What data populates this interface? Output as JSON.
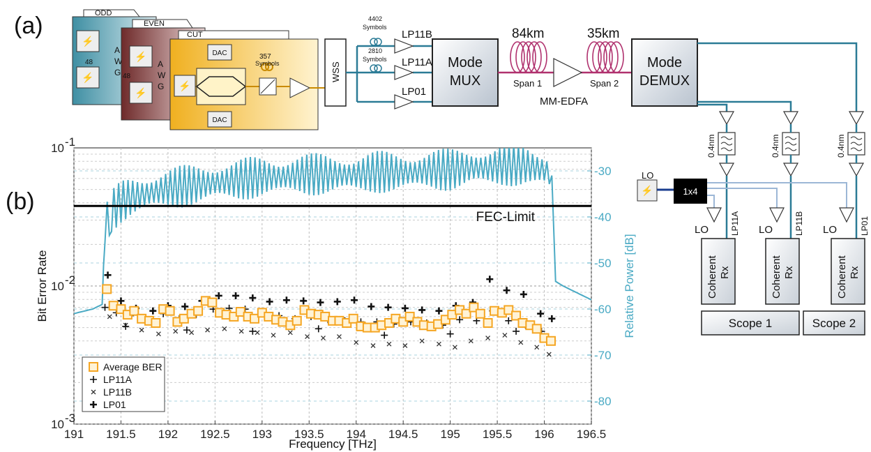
{
  "panel_labels": {
    "a": "(a)",
    "b": "(b)"
  },
  "setup": {
    "awg_odd": "ODD",
    "awg_even": "EVEN",
    "awg_cut": "CUT",
    "awg_letters": [
      "A",
      "W",
      "G"
    ],
    "awg_side": "48",
    "dac": "DAC",
    "symbols_357": "357",
    "symbols_word": "Symbols",
    "wss": "WSS",
    "delay_4402": "4402",
    "delay_2810": "2810",
    "lp11b": "LP11B",
    "lp11a": "LP11A",
    "lp01": "LP01",
    "mux_l1": "Mode",
    "mux_l2": "MUX",
    "span1_len": "84km",
    "span2_len": "35km",
    "span1": "Span 1",
    "span2": "Span 2",
    "edfa": "MM-EDFA",
    "demux_l1": "Mode",
    "demux_l2": "DEMUX",
    "filter": "0.4nm",
    "lo": "LO",
    "splitter": "1x4",
    "rx_l1": "Coherent",
    "rx_l2": "Rx",
    "rx_lo": "LO",
    "rx_labels": [
      "LP11A",
      "LP11B",
      "LP01"
    ],
    "scope1": "Scope 1",
    "scope2": "Scope 2"
  },
  "chart_data": {
    "type": "scatter",
    "xlabel": "Frequency [THz]",
    "ylabel": "Bit Error Rate",
    "ylabel_right": "Relative Power [dB]",
    "xlim": [
      191,
      196.5
    ],
    "ylim": [
      0.001,
      0.1
    ],
    "yscale": "log",
    "ylim_right": [
      -85,
      -25
    ],
    "x_ticks": [
      "191",
      "191.5",
      "192",
      "192.5",
      "193",
      "193.5",
      "194",
      "194.5",
      "195",
      "195.5",
      "196",
      "196.5"
    ],
    "y_ticks": [
      {
        "base": "10",
        "exp": "-3",
        "v": 0.001
      },
      {
        "base": "10",
        "exp": "-2",
        "v": 0.01
      },
      {
        "base": "10",
        "exp": "-1",
        "v": 0.1
      }
    ],
    "y_ticks_right": [
      "-30",
      "-40",
      "-50",
      "-60",
      "-70",
      "-80"
    ],
    "fec_limit": {
      "label": "FEC-Limit",
      "value": 0.038
    },
    "grid": true,
    "legend_position": "bottom-left",
    "legend": [
      "Average BER",
      "LP11A",
      "LP11B",
      "LP01"
    ],
    "series": [
      {
        "name": "Average BER",
        "marker": "square",
        "color": "#f5a623",
        "x": [
          191.35,
          191.42,
          191.5,
          191.57,
          191.64,
          191.72,
          191.8,
          191.87,
          191.95,
          192.02,
          192.1,
          192.17,
          192.25,
          192.32,
          192.4,
          192.47,
          192.55,
          192.62,
          192.7,
          192.77,
          192.85,
          192.92,
          193.0,
          193.07,
          193.15,
          193.22,
          193.3,
          193.37,
          193.45,
          193.52,
          193.6,
          193.67,
          193.75,
          193.82,
          193.9,
          193.97,
          194.05,
          194.12,
          194.2,
          194.27,
          194.35,
          194.42,
          194.5,
          194.57,
          194.65,
          194.72,
          194.8,
          194.87,
          194.95,
          195.02,
          195.1,
          195.17,
          195.25,
          195.32,
          195.4,
          195.47,
          195.55,
          195.62,
          195.7,
          195.77,
          195.85,
          195.92,
          196.0,
          196.07
        ],
        "y": [
          0.0095,
          0.0072,
          0.0068,
          0.0062,
          0.0066,
          0.0058,
          0.0056,
          0.0054,
          0.0068,
          0.0066,
          0.0055,
          0.0058,
          0.0063,
          0.0066,
          0.0078,
          0.0076,
          0.0064,
          0.0062,
          0.006,
          0.0065,
          0.006,
          0.0058,
          0.0064,
          0.006,
          0.0057,
          0.0055,
          0.0052,
          0.0056,
          0.0067,
          0.0063,
          0.0062,
          0.006,
          0.0056,
          0.0056,
          0.0054,
          0.0058,
          0.0051,
          0.005,
          0.005,
          0.0052,
          0.0054,
          0.0058,
          0.0055,
          0.006,
          0.0055,
          0.0052,
          0.0051,
          0.0053,
          0.0057,
          0.0062,
          0.0067,
          0.0063,
          0.007,
          0.0063,
          0.0054,
          0.0066,
          0.0064,
          0.0067,
          0.0061,
          0.0054,
          0.0052,
          0.0049,
          0.0042,
          0.004
        ]
      },
      {
        "name": "LP11A",
        "marker": "plus",
        "color": "#111111",
        "x": [
          191.33,
          191.45,
          191.6,
          191.78,
          191.95,
          192.12,
          192.3,
          192.48,
          192.65,
          192.82,
          193.0,
          193.18,
          193.35,
          193.52,
          193.7,
          193.88,
          194.05,
          194.22,
          194.4,
          194.58,
          194.75,
          194.92,
          195.1,
          195.28,
          195.45,
          195.62,
          195.8,
          195.97,
          191.55,
          192.2,
          192.9,
          193.6,
          194.3,
          195.0,
          195.7
        ],
        "y": [
          0.007,
          0.0064,
          0.0061,
          0.0056,
          0.0063,
          0.0058,
          0.0062,
          0.0068,
          0.0069,
          0.0068,
          0.0063,
          0.0061,
          0.0058,
          0.006,
          0.0057,
          0.0056,
          0.0055,
          0.0055,
          0.0053,
          0.0055,
          0.0054,
          0.0052,
          0.0057,
          0.0056,
          0.0066,
          0.0056,
          0.0052,
          0.0047,
          0.0051,
          0.0048,
          0.0047,
          0.0049,
          0.0044,
          0.0045,
          0.0047
        ]
      },
      {
        "name": "LP11B",
        "marker": "cross",
        "color": "#333333",
        "x": [
          191.38,
          191.55,
          191.72,
          191.9,
          192.08,
          192.25,
          192.42,
          192.6,
          192.78,
          192.95,
          193.12,
          193.3,
          193.48,
          193.65,
          193.82,
          194.0,
          194.18,
          194.35,
          194.52,
          194.7,
          194.88,
          195.05,
          195.22,
          195.4,
          195.58,
          195.75,
          195.92,
          196.05
        ],
        "y": [
          0.006,
          0.0052,
          0.0048,
          0.0045,
          0.0047,
          0.0046,
          0.0048,
          0.0049,
          0.0047,
          0.0046,
          0.0044,
          0.0046,
          0.0043,
          0.0042,
          0.0043,
          0.0039,
          0.0037,
          0.0038,
          0.0037,
          0.004,
          0.0038,
          0.0036,
          0.004,
          0.0042,
          0.0044,
          0.0039,
          0.0036,
          0.0032
        ]
      },
      {
        "name": "LP01",
        "marker": "thickplus",
        "color": "#111111",
        "x": [
          191.36,
          191.5,
          191.66,
          191.84,
          192.0,
          192.18,
          192.36,
          192.54,
          192.72,
          192.9,
          193.08,
          193.26,
          193.44,
          193.62,
          193.8,
          193.98,
          194.16,
          194.34,
          194.52,
          194.7,
          194.88,
          195.06,
          195.24,
          195.42,
          195.6,
          195.78,
          195.96,
          196.08
        ],
        "y": [
          0.012,
          0.0078,
          0.0069,
          0.0066,
          0.0072,
          0.0071,
          0.0078,
          0.0085,
          0.0085,
          0.0082,
          0.0077,
          0.0079,
          0.0078,
          0.0076,
          0.0077,
          0.0079,
          0.0071,
          0.007,
          0.0069,
          0.0067,
          0.0066,
          0.0072,
          0.0076,
          0.0112,
          0.0093,
          0.0087,
          0.0063,
          0.0058
        ]
      },
      {
        "name": "Relative Power",
        "axis": "right",
        "style": "line",
        "color": "#4aaac4",
        "x": [
          191.0,
          191.1,
          191.2,
          191.3,
          191.33,
          191.4,
          191.5,
          191.6,
          191.7,
          191.8,
          192.0,
          192.2,
          192.4,
          192.6,
          192.8,
          193.0,
          193.2,
          193.4,
          193.6,
          193.8,
          194.0,
          194.2,
          194.4,
          194.6,
          194.8,
          195.0,
          195.2,
          195.4,
          195.6,
          195.8,
          196.0,
          196.08,
          196.12,
          196.2,
          196.3,
          196.4,
          196.5
        ],
        "y": [
          -61,
          -60.5,
          -60,
          -59,
          -42,
          -39,
          -37,
          -36,
          -35.5,
          -35,
          -34,
          -33.5,
          -33,
          -32.5,
          -32,
          -31.5,
          -31.5,
          -31,
          -31,
          -31,
          -31,
          -30.5,
          -30.5,
          -30.5,
          -30,
          -30,
          -29.5,
          -29.5,
          -29,
          -29,
          -30,
          -31,
          -54,
          -55,
          -56,
          -57,
          -58
        ]
      }
    ]
  }
}
